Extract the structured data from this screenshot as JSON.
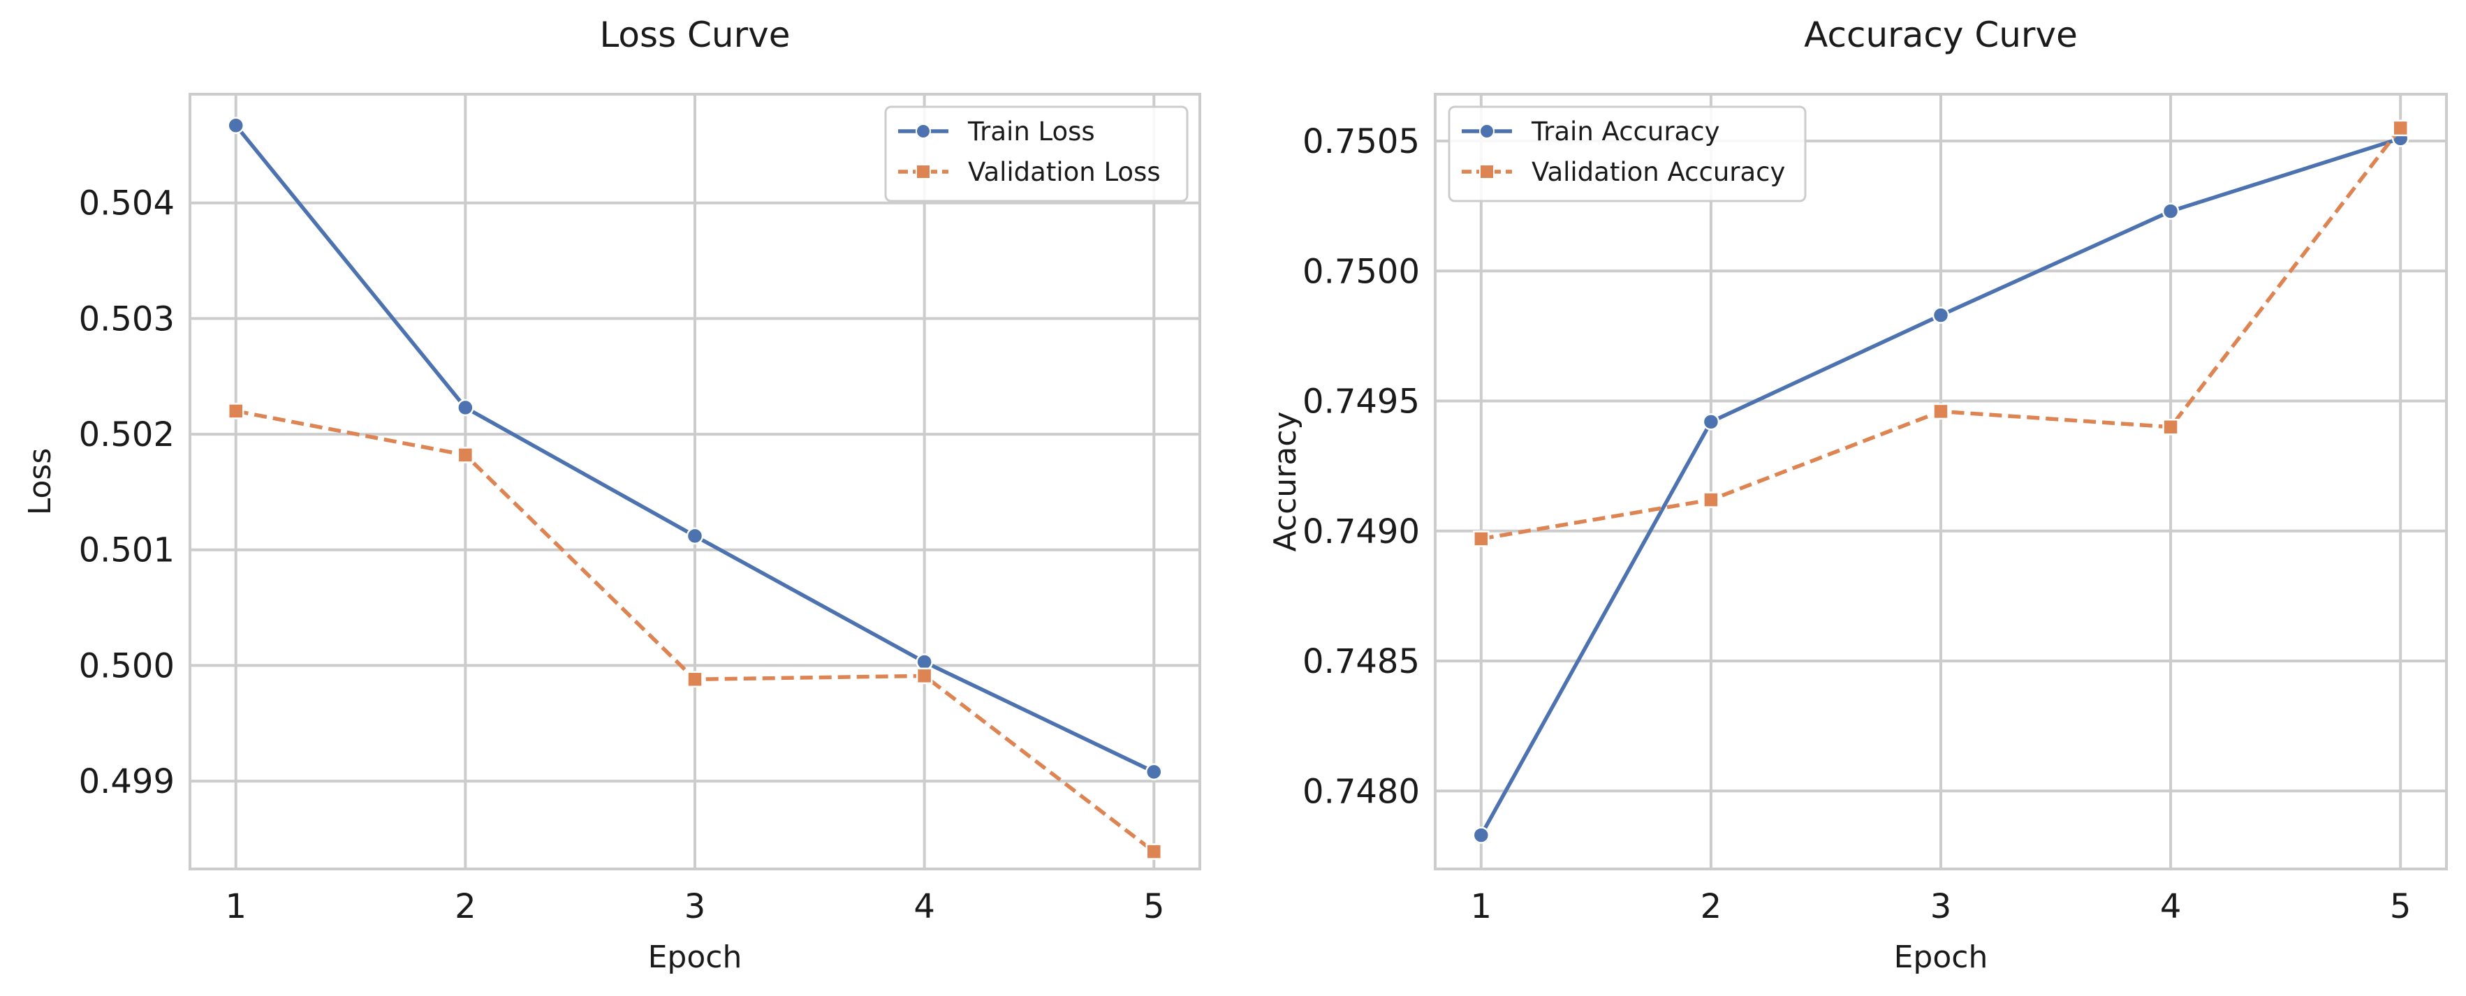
{
  "colors": {
    "train": "#4c72b0",
    "validation": "#dd8452",
    "grid": "#cccccc",
    "text": "#1a1a1a"
  },
  "chart_data": [
    {
      "type": "line",
      "title": "Loss Curve",
      "xlabel": "Epoch",
      "ylabel": "Loss",
      "x": [
        1,
        2,
        3,
        4,
        5
      ],
      "xticks": [
        "1",
        "2",
        "3",
        "4",
        "5"
      ],
      "xlim": [
        0.8,
        5.2
      ],
      "ylim": [
        0.49824,
        0.50494
      ],
      "yticks": [
        0.499,
        0.5,
        0.501,
        0.502,
        0.503,
        0.504
      ],
      "ytick_labels": [
        "0.499",
        "0.500",
        "0.501",
        "0.502",
        "0.503",
        "0.504"
      ],
      "grid": true,
      "legend": "top-right",
      "series": [
        {
          "name": "Train Loss",
          "values": [
            0.50467,
            0.50223,
            0.50112,
            0.50003,
            0.49908
          ],
          "marker": "circle",
          "linestyle": "solid",
          "color": "#4c72b0"
        },
        {
          "name": "Validation Loss",
          "values": [
            0.5022,
            0.50182,
            0.49988,
            0.49991,
            0.49839
          ],
          "marker": "square",
          "linestyle": "dashed",
          "color": "#dd8452"
        }
      ]
    },
    {
      "type": "line",
      "title": "Accuracy Curve",
      "xlabel": "Epoch",
      "ylabel": "Accuracy",
      "x": [
        1,
        2,
        3,
        4,
        5
      ],
      "xticks": [
        "1",
        "2",
        "3",
        "4",
        "5"
      ],
      "xlim": [
        0.8,
        5.2
      ],
      "ylim": [
        0.7477,
        0.75068
      ],
      "yticks": [
        0.748,
        0.7485,
        0.749,
        0.7495,
        0.75,
        0.7505
      ],
      "ytick_labels": [
        "0.7480",
        "0.7485",
        "0.7490",
        "0.7495",
        "0.7500",
        "0.7505"
      ],
      "grid": true,
      "legend": "top-left",
      "series": [
        {
          "name": "Train Accuracy",
          "values": [
            0.74783,
            0.74942,
            0.74983,
            0.75023,
            0.75051
          ],
          "marker": "circle",
          "linestyle": "solid",
          "color": "#4c72b0"
        },
        {
          "name": "Validation Accuracy",
          "values": [
            0.74897,
            0.74912,
            0.74946,
            0.7494,
            0.75055
          ],
          "marker": "square",
          "linestyle": "dashed",
          "color": "#dd8452"
        }
      ]
    }
  ]
}
